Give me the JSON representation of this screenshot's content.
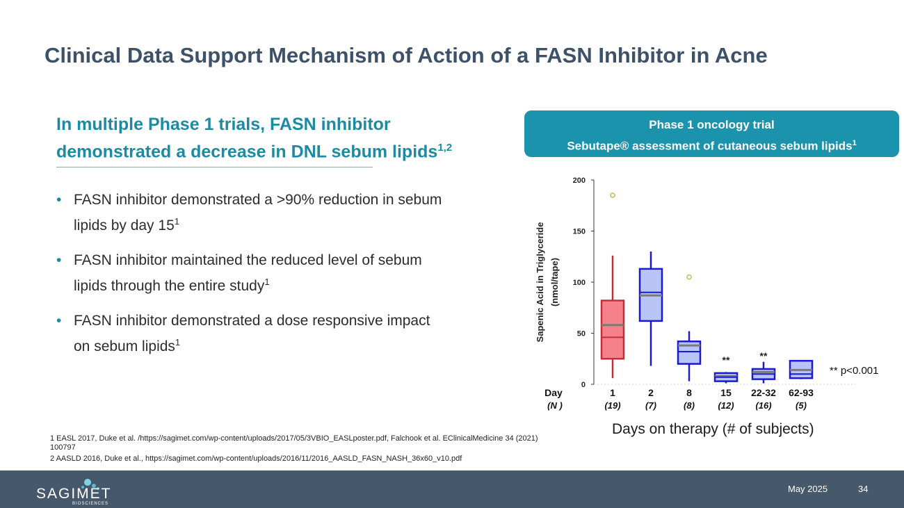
{
  "slide": {
    "title": "Clinical Data Support Mechanism of Action of a FASN Inhibitor in Acne",
    "subheading": {
      "text": "In multiple Phase 1 trials, FASN inhibitor demonstrated a decrease in DNL sebum lipids",
      "sup": "1,2"
    },
    "bullets": [
      {
        "text": "FASN inhibitor demonstrated a >90% reduction in sebum lipids by day 15",
        "sup": "1"
      },
      {
        "text": "FASN inhibitor maintained the reduced level of sebum lipids through the entire study",
        "sup": "1"
      },
      {
        "text": "FASN inhibitor demonstrated a dose responsive impact on sebum lipids",
        "sup": "1"
      }
    ],
    "bullet_symbol": "•",
    "panel": {
      "line1": "Phase 1 oncology trial",
      "line2": "Sebutape® assessment of cutaneous sebum lipids",
      "sup": "1"
    },
    "x_caption": "Days on therapy (# of subjects)",
    "references": [
      "1 EASL 2017, Duke et al.  /https://sagimet.com/wp-content/uploads/2017/05/3VBIO_EASLposter.pdf, Falchook et al. EClinicalMedicine 34 (2021) 100797",
      "2 AASLD 2016, Duke et al., https://sagimet.com/wp-content/uploads/2016/11/2016_AASLD_FASN_NASH_36x60_v10.pdf"
    ]
  },
  "footer": {
    "logo_word": "SAGIMET",
    "logo_sub": "BIOSCIENCES",
    "date": "May 2025",
    "page": "34"
  },
  "chart_data": {
    "type": "box",
    "ylabel_line1": "Sapenic Acid in Triglyceride",
    "ylabel_line2": "(nmol/tape)",
    "ylim": [
      0,
      200
    ],
    "yticks": [
      0,
      50,
      100,
      150,
      200
    ],
    "x_header": "Day",
    "n_header": "(N )",
    "significance_note": "** p<0.001",
    "colors": {
      "day1_fill": "#f5828a",
      "day1_stroke": "#c0303a",
      "fill": "#b8c4f5",
      "stroke": "#1a1ad0",
      "mean_line": "#7a7a7a",
      "outlier": "#c8c87a"
    },
    "boxes": [
      {
        "day": "1",
        "n": "(19)",
        "whisker_low": 6,
        "q1": 25,
        "median": 46,
        "mean": 58,
        "q3": 82,
        "whisker_high": 126,
        "outliers": [
          185
        ],
        "sig": ""
      },
      {
        "day": "2",
        "n": "(7)",
        "whisker_low": 18,
        "q1": 62,
        "median": 90,
        "mean": 87,
        "q3": 113,
        "whisker_high": 130,
        "outliers": [],
        "sig": ""
      },
      {
        "day": "8",
        "n": "(8)",
        "whisker_low": 3,
        "q1": 20,
        "median": 32,
        "mean": 38,
        "q3": 42,
        "whisker_high": 52,
        "outliers": [
          105
        ],
        "sig": ""
      },
      {
        "day": "15",
        "n": "(12)",
        "whisker_low": 1,
        "q1": 3,
        "median": 7,
        "mean": 8,
        "q3": 11,
        "whisker_high": 12,
        "outliers": [],
        "sig": "**"
      },
      {
        "day": "22-32",
        "n": "(16)",
        "whisker_low": 1,
        "q1": 5,
        "median": 10,
        "mean": 12,
        "q3": 15,
        "whisker_high": 22,
        "outliers": [],
        "sig": "**"
      },
      {
        "day": "62-93",
        "n": "(5)",
        "whisker_low": 5,
        "q1": 6,
        "median": 10,
        "mean": 14,
        "q3": 23,
        "whisker_high": 23,
        "outliers": [],
        "sig": ""
      }
    ]
  }
}
